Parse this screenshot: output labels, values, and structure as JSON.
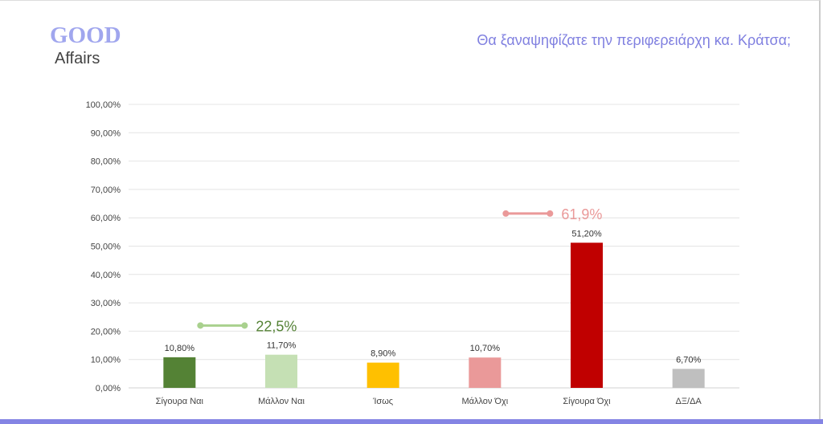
{
  "logo": {
    "line1": "GOOD",
    "line2": "Affairs"
  },
  "chart_data": {
    "type": "bar",
    "title": "Θα ξαναψηφίζατε την περιφερειάρχη κα. Κράτσα;",
    "categories": [
      "Σίγουρα Ναι",
      "Μάλλον Ναι",
      "Ίσως",
      "Μάλλον Όχι",
      "Σίγουρα Όχι",
      "ΔΞ/ΔΑ"
    ],
    "values": [
      10.8,
      11.7,
      8.9,
      10.7,
      51.2,
      6.7
    ],
    "data_labels": [
      "10,80%",
      "11,70%",
      "8,90%",
      "10,70%",
      "51,20%",
      "6,70%"
    ],
    "colors": [
      "#548235",
      "#c5e0b4",
      "#ffc000",
      "#ea9999",
      "#c00000",
      "#bfbfbf"
    ],
    "ylim": [
      0,
      100
    ],
    "yticks": [
      "0,00%",
      "10,00%",
      "20,00%",
      "30,00%",
      "40,00%",
      "50,00%",
      "60,00%",
      "70,00%",
      "80,00%",
      "90,00%",
      "100,00%"
    ],
    "grid": true,
    "annotations": [
      {
        "text": "22,5%",
        "spans": [
          "Σίγουρα Ναι",
          "Μάλλον Ναι"
        ],
        "level": 22,
        "color": "#a9d18e",
        "text_color": "#548235"
      },
      {
        "text": "61,9%",
        "spans": [
          "Μάλλον Όχι",
          "Σίγουρα Όχι"
        ],
        "level": 61.5,
        "color": "#ea9999",
        "text_color": "#ea9999"
      }
    ]
  }
}
